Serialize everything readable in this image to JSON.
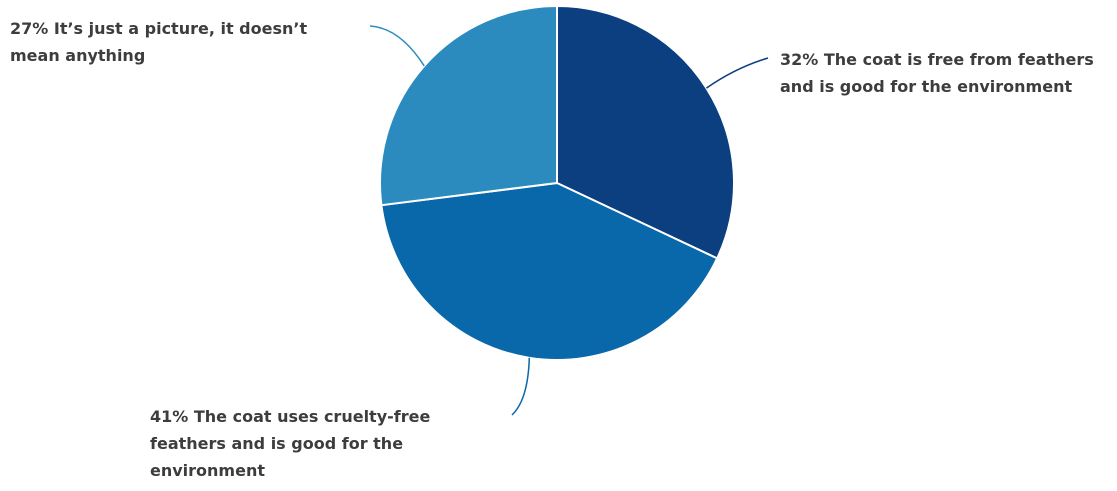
{
  "chart_data": {
    "type": "pie",
    "slices": [
      {
        "label": "The coat is free from feathers and is good for the environment",
        "value": 32,
        "value_label": "32%",
        "color": "#0b3f7f"
      },
      {
        "label": "The coat uses cruelty-free feathers and is good for the environment",
        "value": 41,
        "value_label": "41%",
        "color": "#0868aa"
      },
      {
        "label": "It’s just a picture, it doesn’t mean anything",
        "value": 27,
        "value_label": "27%",
        "color": "#2b8bbf"
      }
    ],
    "labels": [
      "32% The coat is free from feathers and is good for the environment",
      "41% The coat uses cruelty-free feathers and is good for the environment",
      "27% It’s just a picture, it doesn’t mean anything"
    ],
    "start": "12 o'clock, clockwise",
    "legend": "none"
  }
}
